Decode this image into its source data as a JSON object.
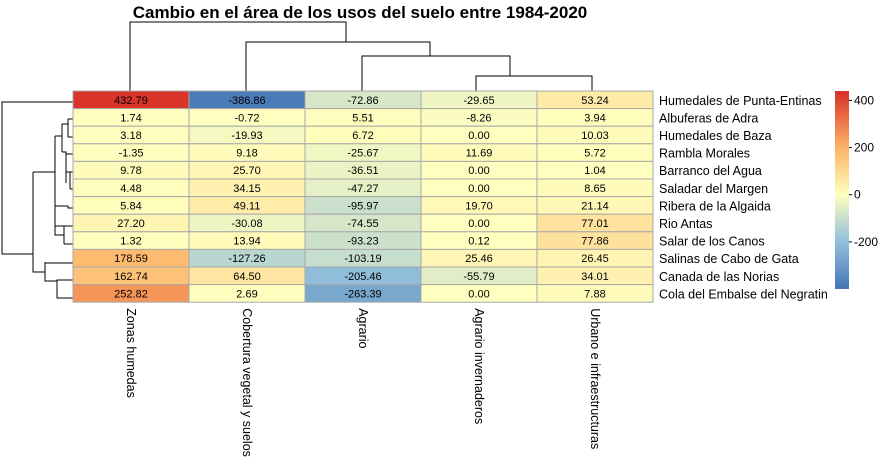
{
  "chart_data": {
    "type": "heatmap",
    "title": "Cambio en el área de los usos del suelo entre 1984-2020",
    "columns": [
      "Zonas humedas",
      "Cobertura vegetal y suelos",
      "Agrario",
      "Agrario invernaderos",
      "Urbano e infraestructuras"
    ],
    "rows": [
      "Humedales de Punta-Entinas",
      "Albuferas de Adra",
      "Humedales de Baza",
      "Rambla Morales",
      "Barranco del Agua",
      "Saladar del Margen",
      "Ribera de la Algaida",
      "Rio Antas",
      "Salar de los Canos",
      "Salinas de Cabo de Gata",
      "Canada de las Norias",
      "Cola del Embalse del Negratin"
    ],
    "values": [
      [
        432.79,
        -386.86,
        -72.86,
        -29.65,
        53.24
      ],
      [
        1.74,
        -0.72,
        5.51,
        -8.26,
        3.94
      ],
      [
        3.18,
        -19.93,
        6.72,
        0.0,
        10.03
      ],
      [
        -1.35,
        9.18,
        -25.67,
        11.69,
        5.72
      ],
      [
        9.78,
        25.7,
        -36.51,
        0.0,
        1.04
      ],
      [
        4.48,
        34.15,
        -47.27,
        0.0,
        8.65
      ],
      [
        5.84,
        49.11,
        -95.97,
        19.7,
        21.14
      ],
      [
        27.2,
        -30.08,
        -74.55,
        0.0,
        77.01
      ],
      [
        1.32,
        13.94,
        -93.23,
        0.12,
        77.86
      ],
      [
        178.59,
        -127.26,
        -103.19,
        25.46,
        26.45
      ],
      [
        162.74,
        64.5,
        -205.46,
        -55.79,
        34.01
      ],
      [
        252.82,
        2.69,
        -263.39,
        0.0,
        7.88
      ]
    ],
    "value_labels": [
      [
        "432.79",
        "-386.86",
        "-72.86",
        "-29.65",
        "53.24"
      ],
      [
        "1.74",
        "-0.72",
        "5.51",
        "-8.26",
        "3.94"
      ],
      [
        "3.18",
        "-19.93",
        "6.72",
        "0.00",
        "10.03"
      ],
      [
        "-1.35",
        "9.18",
        "-25.67",
        "11.69",
        "5.72"
      ],
      [
        "9.78",
        "25.70",
        "-36.51",
        "0.00",
        "1.04"
      ],
      [
        "4.48",
        "34.15",
        "-47.27",
        "0.00",
        "8.65"
      ],
      [
        "5.84",
        "49.11",
        "-95.97",
        "19.70",
        "21.14"
      ],
      [
        "27.20",
        "-30.08",
        "-74.55",
        "0.00",
        "77.01"
      ],
      [
        "1.32",
        "13.94",
        "-93.23",
        "0.12",
        "77.86"
      ],
      [
        "178.59",
        "-127.26",
        "-103.19",
        "25.46",
        "26.45"
      ],
      [
        "162.74",
        "64.50",
        "-205.46",
        "-55.79",
        "34.01"
      ],
      [
        "252.82",
        "2.69",
        "-263.39",
        "0.00",
        "7.88"
      ]
    ],
    "color_scale": {
      "min": -400,
      "max": 440,
      "stops": [
        {
          "value": -400,
          "color": "#4575b4"
        },
        {
          "value": -200,
          "color": "#91bfdb"
        },
        {
          "value": 0,
          "color": "#ffffbf"
        },
        {
          "value": 200,
          "color": "#fdb366"
        },
        {
          "value": 440,
          "color": "#d73027"
        }
      ]
    },
    "legend": {
      "position": "right",
      "ticks": [
        "400",
        "200",
        "0",
        "-200"
      ],
      "tick_values": [
        400,
        200,
        0,
        -200
      ]
    },
    "column_dendrogram": true,
    "row_dendrogram": true,
    "grid": true
  }
}
